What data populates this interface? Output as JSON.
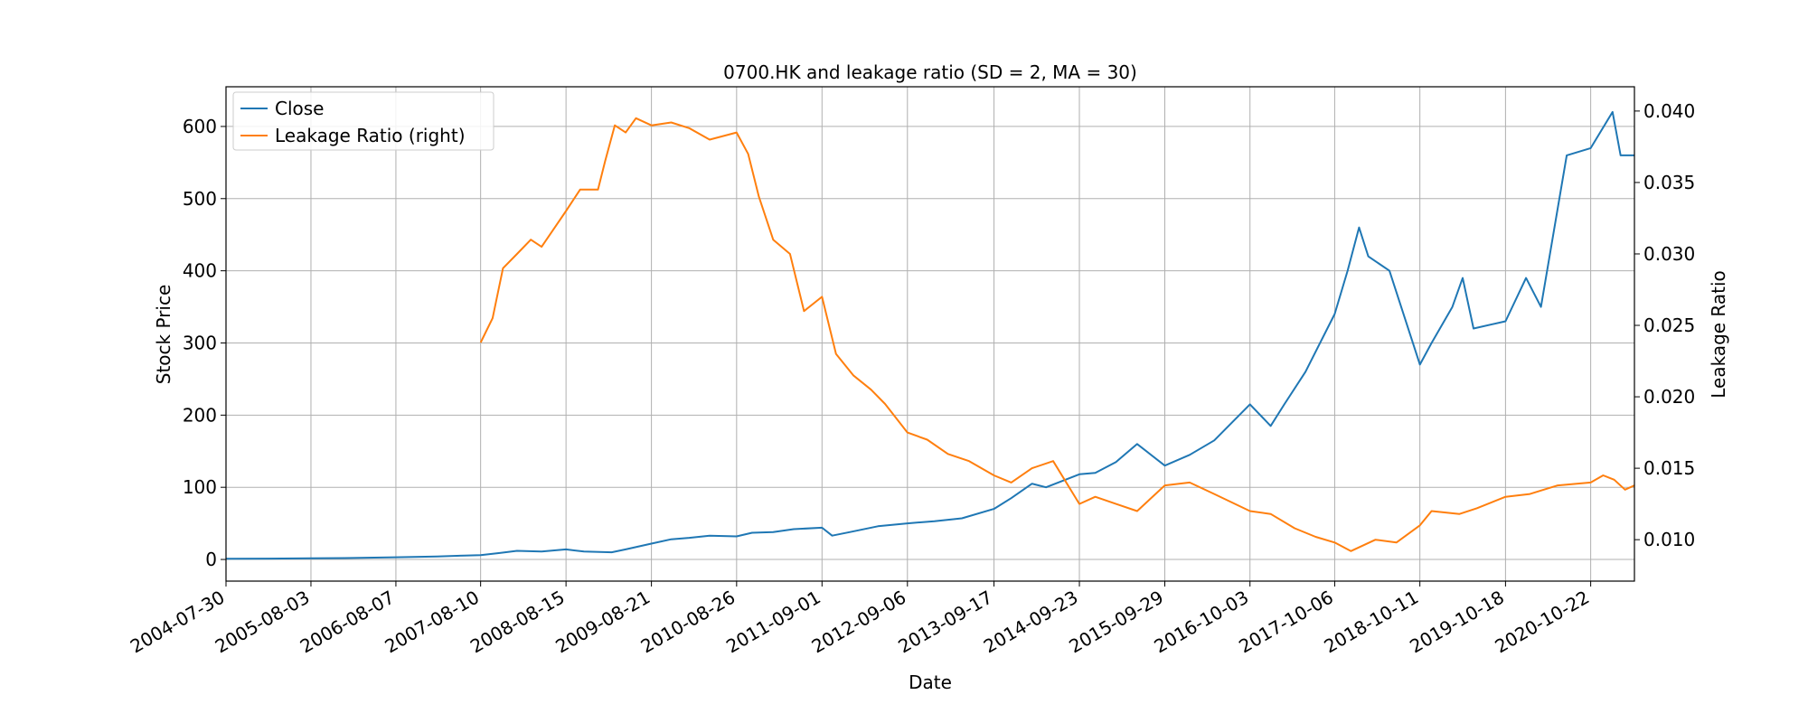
{
  "chart_data": {
    "type": "line",
    "title": "0700.HK and leakage ratio (SD = 2, MA = 30)",
    "xlabel": "Date",
    "ylabel": "Stock Price",
    "ylabel_right": "Leakage Ratio",
    "ylim": [
      -30,
      655
    ],
    "ylim_right": [
      0.0071,
      0.0417
    ],
    "yticks": [
      0,
      100,
      200,
      300,
      400,
      500,
      600
    ],
    "yticks_right": [
      0.01,
      0.015,
      0.02,
      0.025,
      0.03,
      0.035,
      0.04
    ],
    "ytick_labels_right": [
      "0.010",
      "0.015",
      "0.020",
      "0.025",
      "0.030",
      "0.035",
      "0.040"
    ],
    "xlim": [
      "2004-07-30",
      "2021-04-30"
    ],
    "xticks": [
      "2004-07-30",
      "2005-08-03",
      "2006-08-07",
      "2007-08-10",
      "2008-08-15",
      "2009-08-21",
      "2010-08-26",
      "2011-09-01",
      "2012-09-06",
      "2013-09-17",
      "2014-09-23",
      "2015-09-29",
      "2016-10-03",
      "2017-10-06",
      "2018-10-11",
      "2019-10-18",
      "2020-10-22"
    ],
    "grid": true,
    "legend_position": "upper-left",
    "colors": {
      "close": "#1f77b4",
      "leakage": "#ff7f0e"
    },
    "series": [
      {
        "name": "Close",
        "axis": "left",
        "points": [
          [
            "2004-07-30",
            1.0
          ],
          [
            "2005-02-01",
            1.2
          ],
          [
            "2005-08-03",
            1.5
          ],
          [
            "2006-02-01",
            2.0
          ],
          [
            "2006-08-07",
            3.0
          ],
          [
            "2007-02-01",
            4.0
          ],
          [
            "2007-06-01",
            5.5
          ],
          [
            "2007-08-10",
            6.0
          ],
          [
            "2007-11-01",
            9.0
          ],
          [
            "2008-01-15",
            12.0
          ],
          [
            "2008-05-01",
            11.0
          ],
          [
            "2008-08-15",
            14.0
          ],
          [
            "2008-11-01",
            11.0
          ],
          [
            "2009-03-01",
            10.0
          ],
          [
            "2009-05-01",
            14.0
          ],
          [
            "2009-08-21",
            22.0
          ],
          [
            "2009-11-15",
            28.0
          ],
          [
            "2010-02-01",
            30.0
          ],
          [
            "2010-05-01",
            33.0
          ],
          [
            "2010-08-26",
            32.0
          ],
          [
            "2010-11-01",
            37.0
          ],
          [
            "2011-02-01",
            38.0
          ],
          [
            "2011-05-01",
            42.0
          ],
          [
            "2011-09-01",
            44.0
          ],
          [
            "2011-10-15",
            33.0
          ],
          [
            "2012-01-01",
            38.0
          ],
          [
            "2012-05-01",
            46.0
          ],
          [
            "2012-09-06",
            50.0
          ],
          [
            "2013-01-01",
            53.0
          ],
          [
            "2013-05-01",
            57.0
          ],
          [
            "2013-09-17",
            70.0
          ],
          [
            "2013-12-01",
            85.0
          ],
          [
            "2014-03-01",
            105.0
          ],
          [
            "2014-05-01",
            100.0
          ],
          [
            "2014-09-23",
            118.0
          ],
          [
            "2014-12-01",
            120.0
          ],
          [
            "2015-03-01",
            135.0
          ],
          [
            "2015-06-01",
            160.0
          ],
          [
            "2015-09-29",
            130.0
          ],
          [
            "2016-01-15",
            145.0
          ],
          [
            "2016-05-01",
            165.0
          ],
          [
            "2016-10-03",
            215.0
          ],
          [
            "2017-01-01",
            185.0
          ],
          [
            "2017-03-01",
            215.0
          ],
          [
            "2017-06-01",
            260.0
          ],
          [
            "2017-10-06",
            340.0
          ],
          [
            "2017-12-01",
            400.0
          ],
          [
            "2018-01-20",
            460.0
          ],
          [
            "2018-03-01",
            420.0
          ],
          [
            "2018-06-01",
            400.0
          ],
          [
            "2018-10-11",
            270.0
          ],
          [
            "2018-12-01",
            300.0
          ],
          [
            "2019-03-01",
            350.0
          ],
          [
            "2019-04-15",
            390.0
          ],
          [
            "2019-06-01",
            320.0
          ],
          [
            "2019-10-18",
            330.0
          ],
          [
            "2020-01-15",
            390.0
          ],
          [
            "2020-03-20",
            350.0
          ],
          [
            "2020-07-10",
            560.0
          ],
          [
            "2020-10-22",
            570.0
          ],
          [
            "2021-01-25",
            620.0
          ],
          [
            "2021-03-01",
            560.0
          ],
          [
            "2021-04-30",
            560.0
          ]
        ]
      },
      {
        "name": "Leakage Ratio (right)",
        "axis": "right",
        "points": [
          [
            "2007-08-10",
            0.0238
          ],
          [
            "2007-10-01",
            0.0255
          ],
          [
            "2007-11-15",
            0.029
          ],
          [
            "2008-01-15",
            0.03
          ],
          [
            "2008-03-15",
            0.031
          ],
          [
            "2008-05-01",
            0.0305
          ],
          [
            "2008-08-15",
            0.033
          ],
          [
            "2008-10-15",
            0.0345
          ],
          [
            "2009-01-01",
            0.0345
          ],
          [
            "2009-02-01",
            0.0365
          ],
          [
            "2009-03-15",
            0.039
          ],
          [
            "2009-05-01",
            0.0385
          ],
          [
            "2009-06-15",
            0.0395
          ],
          [
            "2009-08-21",
            0.039
          ],
          [
            "2009-11-15",
            0.0392
          ],
          [
            "2010-02-01",
            0.0388
          ],
          [
            "2010-05-01",
            0.038
          ],
          [
            "2010-08-26",
            0.0385
          ],
          [
            "2010-10-15",
            0.037
          ],
          [
            "2010-12-01",
            0.034
          ],
          [
            "2011-02-01",
            0.031
          ],
          [
            "2011-04-15",
            0.03
          ],
          [
            "2011-06-15",
            0.026
          ],
          [
            "2011-09-01",
            0.027
          ],
          [
            "2011-11-01",
            0.023
          ],
          [
            "2012-01-15",
            0.0215
          ],
          [
            "2012-04-01",
            0.0205
          ],
          [
            "2012-06-01",
            0.0195
          ],
          [
            "2012-09-06",
            0.0175
          ],
          [
            "2012-12-01",
            0.017
          ],
          [
            "2013-03-01",
            0.016
          ],
          [
            "2013-06-01",
            0.0155
          ],
          [
            "2013-09-17",
            0.0145
          ],
          [
            "2013-12-01",
            0.014
          ],
          [
            "2014-03-01",
            0.015
          ],
          [
            "2014-06-01",
            0.0155
          ],
          [
            "2014-09-23",
            0.0125
          ],
          [
            "2014-12-01",
            0.013
          ],
          [
            "2015-03-01",
            0.0125
          ],
          [
            "2015-06-01",
            0.012
          ],
          [
            "2015-09-29",
            0.0138
          ],
          [
            "2016-01-15",
            0.014
          ],
          [
            "2016-05-01",
            0.0132
          ],
          [
            "2016-10-03",
            0.012
          ],
          [
            "2017-01-01",
            0.0118
          ],
          [
            "2017-04-15",
            0.0108
          ],
          [
            "2017-07-15",
            0.0102
          ],
          [
            "2017-10-06",
            0.0098
          ],
          [
            "2017-12-15",
            0.0092
          ],
          [
            "2018-04-01",
            0.01
          ],
          [
            "2018-07-01",
            0.0098
          ],
          [
            "2018-10-11",
            0.011
          ],
          [
            "2018-12-01",
            0.012
          ],
          [
            "2019-04-01",
            0.0118
          ],
          [
            "2019-06-15",
            0.0122
          ],
          [
            "2019-10-18",
            0.013
          ],
          [
            "2020-02-01",
            0.0132
          ],
          [
            "2020-06-01",
            0.0138
          ],
          [
            "2020-10-22",
            0.014
          ],
          [
            "2020-12-15",
            0.0145
          ],
          [
            "2021-02-01",
            0.0142
          ],
          [
            "2021-03-20",
            0.0135
          ],
          [
            "2021-04-30",
            0.0138
          ]
        ]
      }
    ]
  }
}
